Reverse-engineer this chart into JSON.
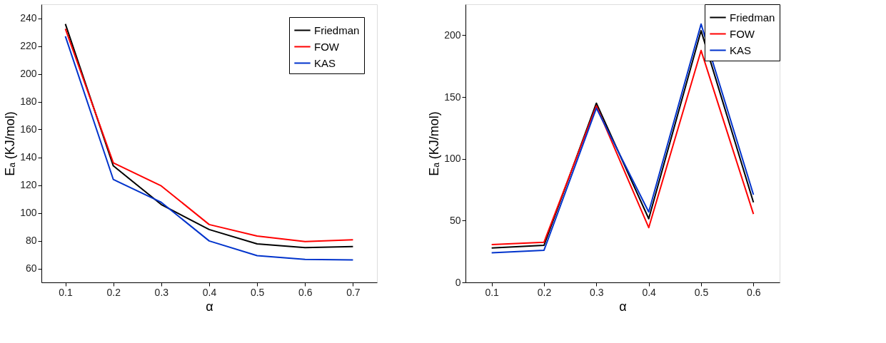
{
  "chart_data": [
    {
      "type": "line",
      "xlabel": "α",
      "ylabel": "Eₐ (KJ/mol)",
      "x": [
        0.1,
        0.2,
        0.3,
        0.4,
        0.5,
        0.6,
        0.7
      ],
      "series": [
        {
          "name": "Friedman",
          "color": "#000000",
          "values": [
            235.8,
            133.8,
            106,
            88,
            77.7,
            75,
            75.8
          ]
        },
        {
          "name": "FOW",
          "color": "#ff0000",
          "values": [
            232.4,
            136,
            119.4,
            91.6,
            83.3,
            79.4,
            80.7
          ]
        },
        {
          "name": "KAS",
          "color": "#0033cc",
          "values": [
            227,
            124,
            107.6,
            79.8,
            69.2,
            66.6,
            66.2
          ]
        }
      ],
      "xlim": [
        0.05,
        0.75
      ],
      "xticks": [
        0.1,
        0.2,
        0.3,
        0.4,
        0.5,
        0.6,
        0.7
      ],
      "ylim": [
        50,
        250
      ],
      "yticks": [
        60,
        80,
        100,
        120,
        140,
        160,
        180,
        200,
        220,
        240
      ],
      "grid": false,
      "legend": "top right",
      "marker": "none",
      "line_style": "solid"
    },
    {
      "type": "line",
      "xlabel": "α",
      "ylabel": "Eₐ (KJ/mol)",
      "x": [
        0.1,
        0.2,
        0.3,
        0.4,
        0.5,
        0.6
      ],
      "series": [
        {
          "name": "Friedman",
          "color": "#000000",
          "values": [
            27.8,
            30,
            145,
            51.5,
            203.6,
            64.8
          ]
        },
        {
          "name": "FOW",
          "color": "#ff0000",
          "values": [
            30.6,
            32.5,
            142.8,
            44.3,
            187.6,
            55.3
          ]
        },
        {
          "name": "KAS",
          "color": "#0033cc",
          "values": [
            24,
            26,
            141,
            57,
            209,
            71
          ]
        }
      ],
      "xlim": [
        0.05,
        0.65
      ],
      "xticks": [
        0.1,
        0.2,
        0.3,
        0.4,
        0.5,
        0.6
      ],
      "ylim": [
        0,
        225
      ],
      "yticks": [
        0,
        50,
        100,
        150,
        200
      ],
      "grid": false,
      "legend": "top right",
      "marker": "none",
      "line_style": "solid"
    }
  ]
}
